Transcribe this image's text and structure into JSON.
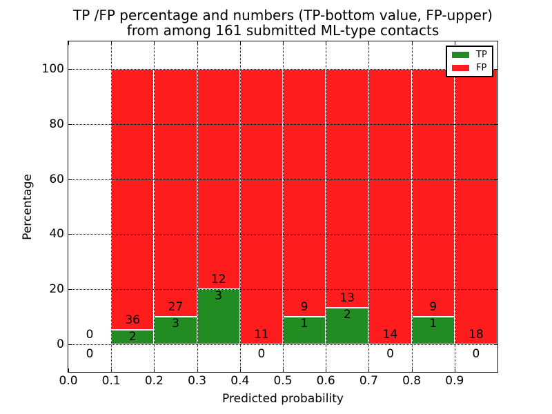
{
  "figure": {
    "title_line1": "TP /FP percentage and numbers (TP-bottom value, FP-upper)",
    "title_line2": "from among 161 submitted ML-type contacts"
  },
  "chart_data": {
    "type": "bar",
    "stacked": true,
    "title": "TP /FP percentage and numbers (TP-bottom value, FP-upper)\nfrom among 161 submitted ML-type contacts",
    "xlabel": "Predicted probability",
    "ylabel": "Percentage",
    "xlim": [
      0.0,
      1.0
    ],
    "ylim": [
      -10,
      110
    ],
    "xticks": [
      0.0,
      0.1,
      0.2,
      0.3,
      0.4,
      0.5,
      0.6,
      0.7,
      0.8,
      0.9
    ],
    "yticks": [
      0,
      20,
      40,
      60,
      80,
      100
    ],
    "grid": "dotted-black",
    "total_contacts": 161,
    "colors": {
      "tp": "#228b22",
      "fp": "#ff1c1c",
      "bar_edge": "#ffffff",
      "background": "#ffffff",
      "text": "#000000"
    },
    "legend": {
      "position": "upper-right",
      "entries": [
        {
          "label": "TP",
          "color": "#228b22"
        },
        {
          "label": "FP",
          "color": "#ff1c1c"
        }
      ]
    },
    "bins": [
      {
        "range": [
          0.0,
          0.1
        ],
        "tp": 0,
        "fp": 0,
        "tp_pct": 0
      },
      {
        "range": [
          0.1,
          0.2
        ],
        "tp": 2,
        "fp": 36,
        "tp_pct": 5.26
      },
      {
        "range": [
          0.2,
          0.3
        ],
        "tp": 3,
        "fp": 27,
        "tp_pct": 10
      },
      {
        "range": [
          0.3,
          0.4
        ],
        "tp": 3,
        "fp": 12,
        "tp_pct": 20
      },
      {
        "range": [
          0.4,
          0.5
        ],
        "tp": 0,
        "fp": 11,
        "tp_pct": 0
      },
      {
        "range": [
          0.5,
          0.6
        ],
        "tp": 1,
        "fp": 9,
        "tp_pct": 10
      },
      {
        "range": [
          0.6,
          0.7
        ],
        "tp": 2,
        "fp": 13,
        "tp_pct": 13.33
      },
      {
        "range": [
          0.7,
          0.8
        ],
        "tp": 0,
        "fp": 14,
        "tp_pct": 0
      },
      {
        "range": [
          0.8,
          0.9
        ],
        "tp": 1,
        "fp": 9,
        "tp_pct": 10
      },
      {
        "range": [
          0.9,
          1.0
        ],
        "tp": 0,
        "fp": 18,
        "tp_pct": 0
      }
    ]
  }
}
